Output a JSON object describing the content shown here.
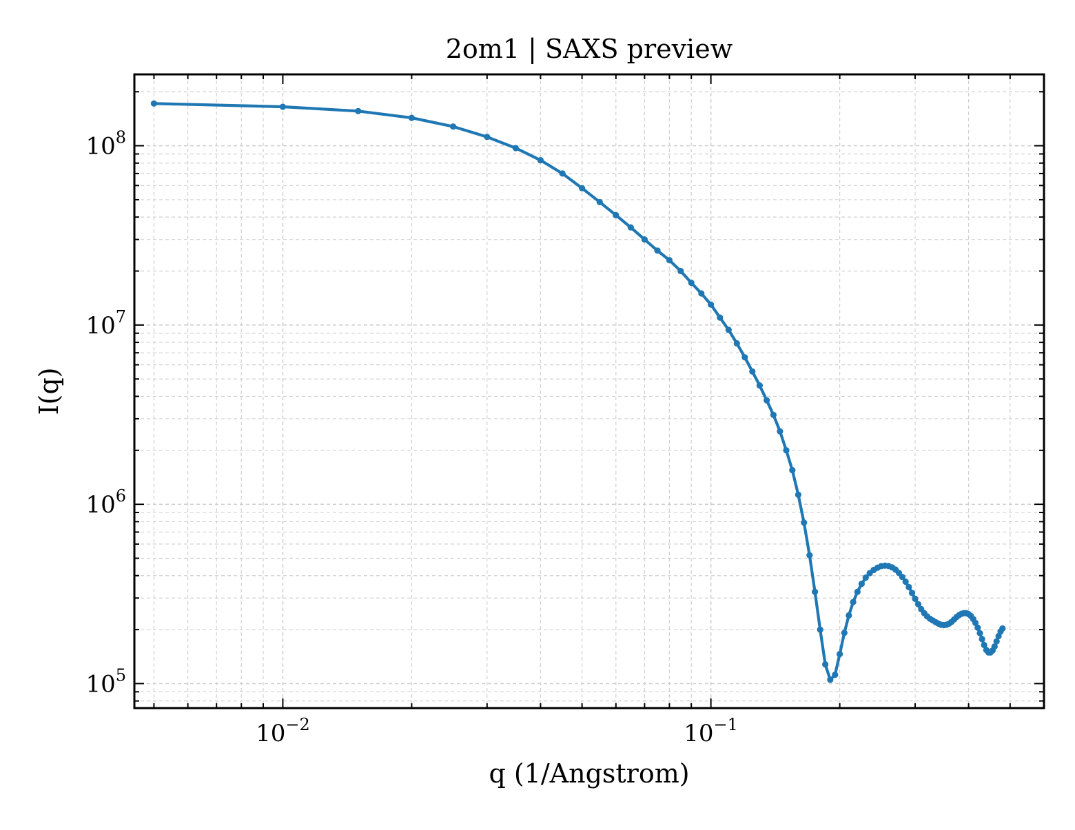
{
  "chart_data": {
    "type": "line",
    "title": "2om1 | SAXS preview",
    "xlabel": "q (1/Angstrom)",
    "ylabel": "I(q)",
    "xscale": "log",
    "yscale": "log",
    "xlim": [
      0.0045,
      0.6
    ],
    "ylim": [
      73000,
      250000000
    ],
    "grid": true,
    "legend": "none",
    "x_ticks": [
      {
        "value": 0.01,
        "base": "10",
        "exp": "−2"
      },
      {
        "value": 0.1,
        "base": "10",
        "exp": "−1"
      }
    ],
    "y_ticks": [
      {
        "value": 100000,
        "base": "10",
        "exp": "5"
      },
      {
        "value": 1000000,
        "base": "10",
        "exp": "6"
      },
      {
        "value": 10000000,
        "base": "10",
        "exp": "7"
      },
      {
        "value": 100000000,
        "base": "10",
        "exp": "8"
      }
    ],
    "series": [
      {
        "color": "#1f77b4",
        "points": [
          [
            0.005,
            172000000
          ],
          [
            0.01,
            165000000
          ],
          [
            0.015,
            156000000
          ],
          [
            0.02,
            143000000
          ],
          [
            0.025,
            128000000
          ],
          [
            0.03,
            112000000
          ],
          [
            0.035,
            97000000
          ],
          [
            0.04,
            83000000
          ],
          [
            0.045,
            70000000
          ],
          [
            0.05,
            58000000
          ],
          [
            0.055,
            48500000
          ],
          [
            0.06,
            41000000
          ],
          [
            0.065,
            35000000
          ],
          [
            0.07,
            30000000
          ],
          [
            0.075,
            26000000
          ],
          [
            0.08,
            23000000
          ],
          [
            0.085,
            20000000
          ],
          [
            0.09,
            17200000
          ],
          [
            0.095,
            15000000
          ],
          [
            0.1,
            13000000
          ],
          [
            0.105,
            11000000
          ],
          [
            0.11,
            9400000
          ],
          [
            0.115,
            7900000
          ],
          [
            0.12,
            6600000
          ],
          [
            0.125,
            5500000
          ],
          [
            0.13,
            4600000
          ],
          [
            0.135,
            3800000
          ],
          [
            0.14,
            3150000
          ],
          [
            0.145,
            2550000
          ],
          [
            0.15,
            2000000
          ],
          [
            0.155,
            1550000
          ],
          [
            0.16,
            1130000
          ],
          [
            0.165,
            790000
          ],
          [
            0.17,
            520000
          ],
          [
            0.175,
            325000
          ],
          [
            0.18,
            200000
          ],
          [
            0.185,
            128000
          ],
          [
            0.19,
            105000
          ],
          [
            0.195,
            112000
          ],
          [
            0.2,
            146000
          ],
          [
            0.205,
            192000
          ],
          [
            0.21,
            240000
          ],
          [
            0.215,
            285000
          ],
          [
            0.22,
            325000
          ],
          [
            0.225,
            360000
          ],
          [
            0.23,
            390000
          ],
          [
            0.235,
            413000
          ],
          [
            0.24,
            430000
          ],
          [
            0.245,
            443000
          ],
          [
            0.25,
            452000
          ],
          [
            0.255,
            455000
          ],
          [
            0.26,
            453000
          ],
          [
            0.265,
            445000
          ],
          [
            0.27,
            432000
          ],
          [
            0.275,
            414000
          ],
          [
            0.28,
            393000
          ],
          [
            0.285,
            370000
          ],
          [
            0.29,
            345000
          ],
          [
            0.295,
            320000
          ],
          [
            0.3,
            297000
          ],
          [
            0.305,
            277000
          ],
          [
            0.31,
            260000
          ],
          [
            0.315,
            247000
          ],
          [
            0.32,
            237000
          ],
          [
            0.325,
            230000
          ],
          [
            0.33,
            225000
          ],
          [
            0.335,
            220000
          ],
          [
            0.34,
            216000
          ],
          [
            0.345,
            213000
          ],
          [
            0.35,
            212000
          ],
          [
            0.355,
            213000
          ],
          [
            0.36,
            216000
          ],
          [
            0.365,
            221000
          ],
          [
            0.37,
            228000
          ],
          [
            0.375,
            235000
          ],
          [
            0.38,
            241000
          ],
          [
            0.385,
            245000
          ],
          [
            0.39,
            247000
          ],
          [
            0.395,
            247000
          ],
          [
            0.4,
            244000
          ],
          [
            0.405,
            238000
          ],
          [
            0.41,
            229000
          ],
          [
            0.415,
            218000
          ],
          [
            0.42,
            205000
          ],
          [
            0.425,
            191000
          ],
          [
            0.43,
            177000
          ],
          [
            0.435,
            164000
          ],
          [
            0.44,
            154000
          ],
          [
            0.445,
            149000
          ],
          [
            0.45,
            149000
          ],
          [
            0.455,
            153000
          ],
          [
            0.46,
            161000
          ],
          [
            0.465,
            172000
          ],
          [
            0.47,
            184000
          ],
          [
            0.475,
            195000
          ],
          [
            0.48,
            203000
          ]
        ]
      }
    ]
  }
}
